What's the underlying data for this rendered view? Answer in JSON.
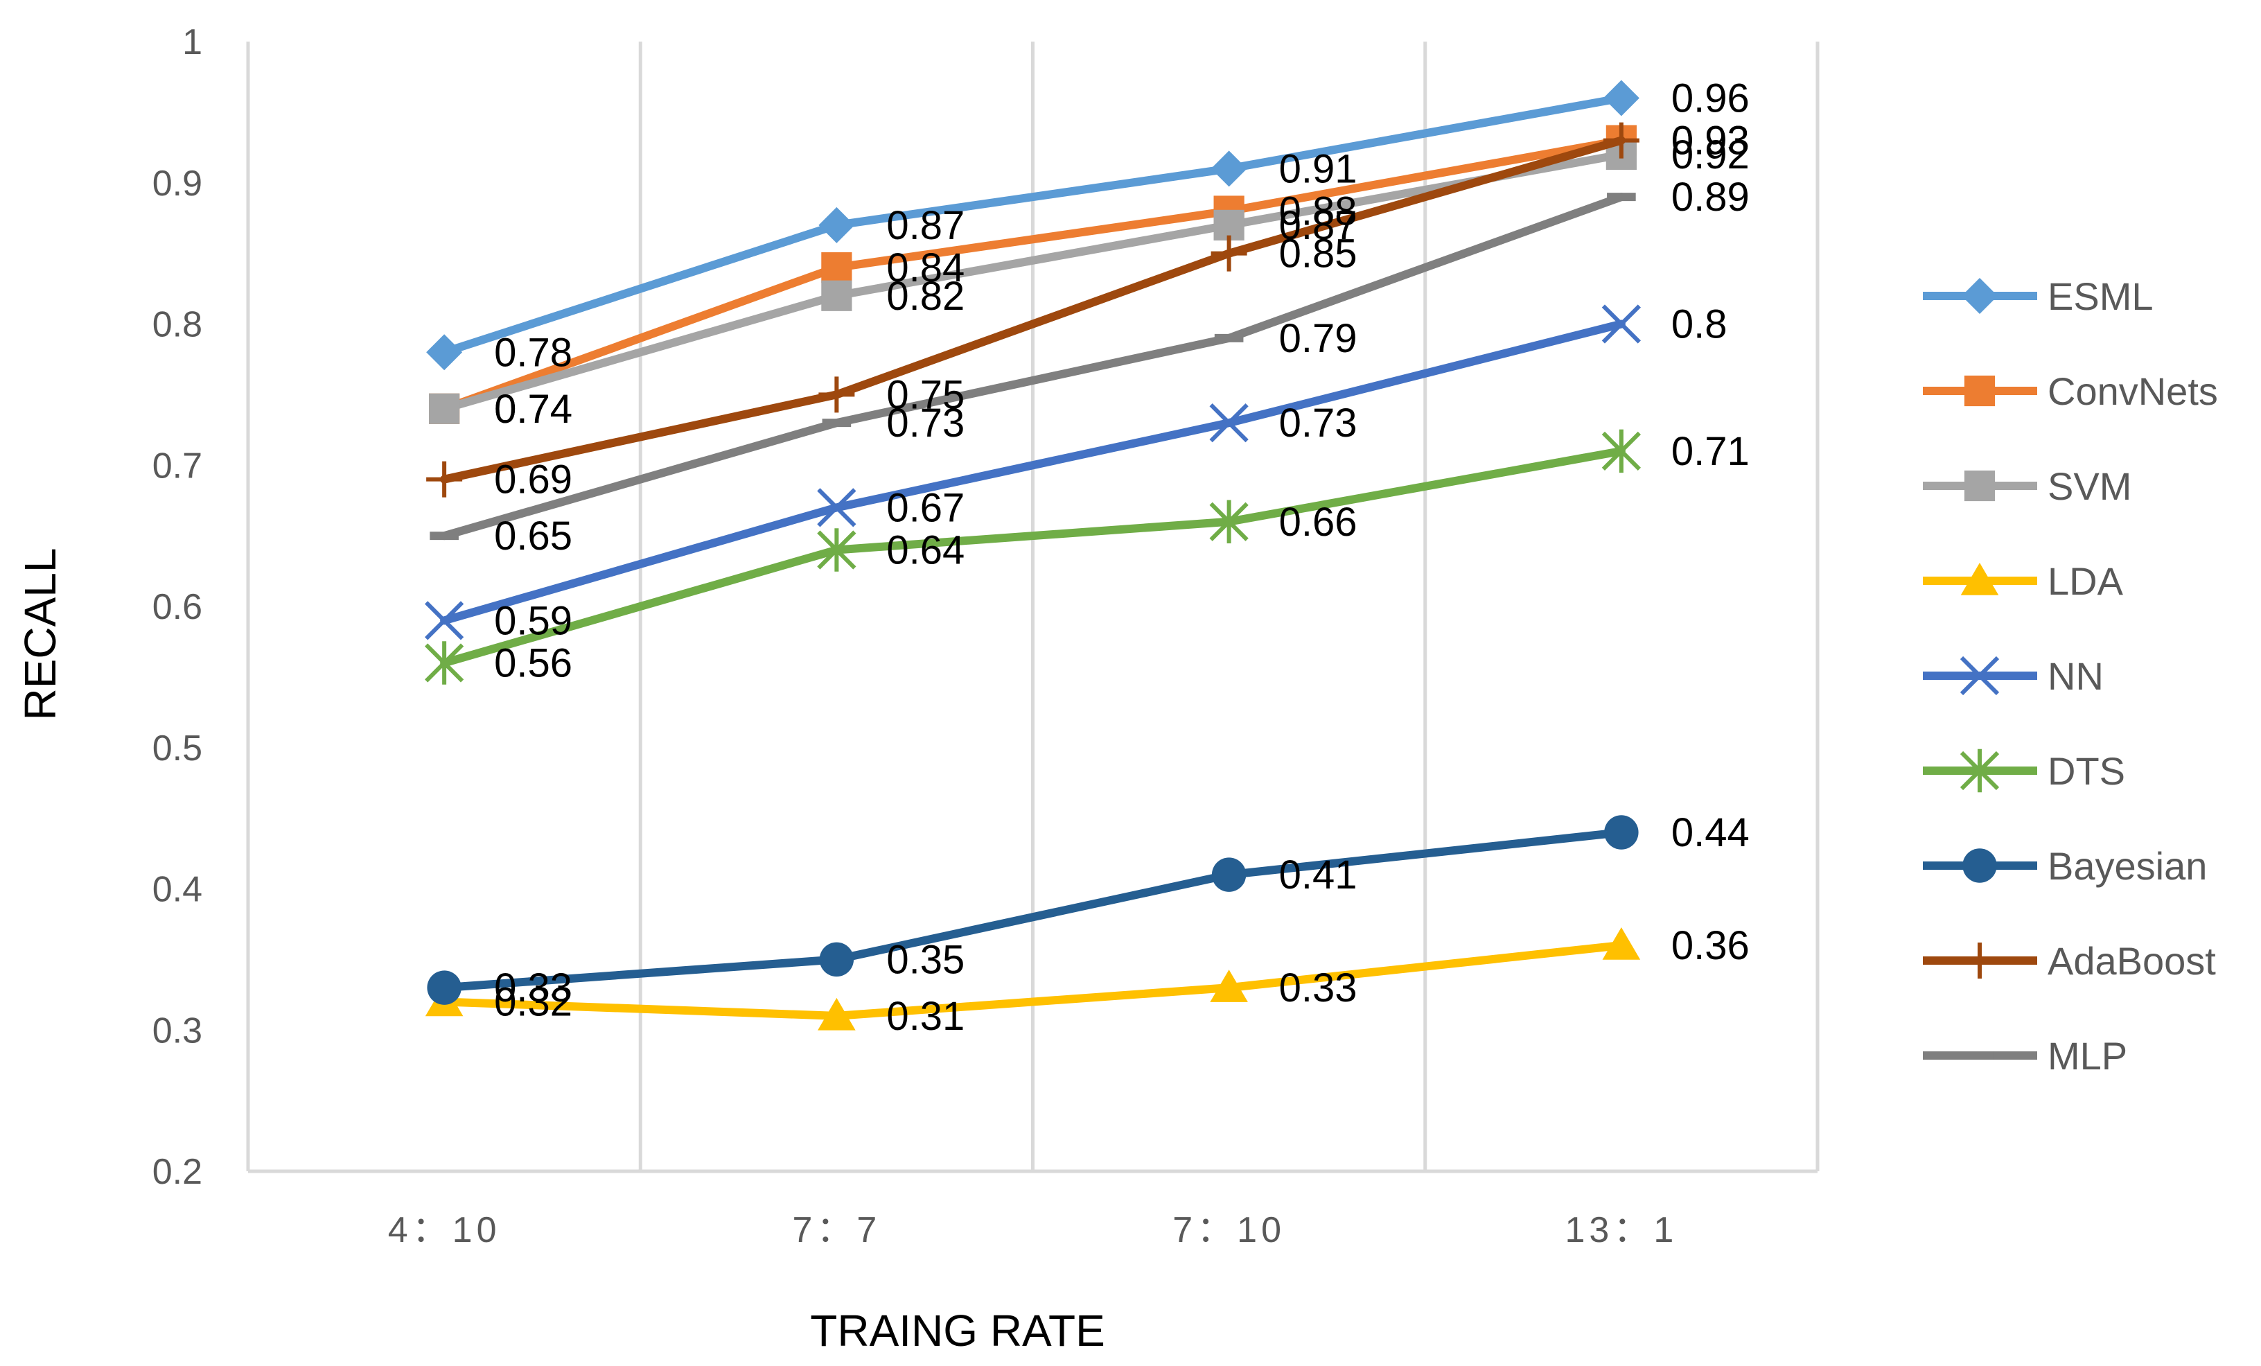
{
  "chart_data": {
    "type": "line",
    "title": "",
    "xlabel": "TRAING RATE",
    "ylabel": "RECALL",
    "ylim": [
      0.2,
      1
    ],
    "yticks": [
      "0.2",
      "0.3",
      "0.4",
      "0.5",
      "0.6",
      "0.7",
      "0.8",
      "0.9",
      "1"
    ],
    "categories": [
      "4：10",
      "7：7",
      "7：10",
      "13：1"
    ],
    "grid": "vertical",
    "legend_position": "right",
    "series": [
      {
        "name": "ESML",
        "color": "#5B9BD5",
        "marker": "diamond",
        "values": [
          0.78,
          0.87,
          0.91,
          0.96
        ],
        "labels": [
          "0.78",
          "0.87",
          "0.91",
          "0.96"
        ]
      },
      {
        "name": "ConvNets",
        "color": "#ED7D31",
        "marker": "square",
        "values": [
          0.74,
          0.84,
          0.88,
          0.93
        ],
        "labels": [
          "0.74",
          "0.84",
          "0.88",
          "0.93"
        ]
      },
      {
        "name": "SVM",
        "color": "#A5A5A5",
        "marker": "square",
        "values": [
          0.74,
          0.82,
          0.87,
          0.92
        ],
        "labels": [
          "0.74",
          "0.82",
          "0.87",
          "0.92"
        ]
      },
      {
        "name": "LDA",
        "color": "#FFC000",
        "marker": "triangle",
        "values": [
          0.32,
          0.31,
          0.33,
          0.36
        ],
        "labels": [
          "0.32",
          "0.31",
          "0.33",
          "0.36"
        ]
      },
      {
        "name": "NN",
        "color": "#4472C4",
        "marker": "x",
        "values": [
          0.59,
          0.67,
          0.73,
          0.8
        ],
        "labels": [
          "0.59",
          "0.67",
          "0.73",
          "0.8"
        ]
      },
      {
        "name": "DTS",
        "color": "#70AD47",
        "marker": "star",
        "values": [
          0.56,
          0.64,
          0.66,
          0.71
        ],
        "labels": [
          "0.56",
          "0.64",
          "0.66",
          "0.71"
        ]
      },
      {
        "name": "Bayesian",
        "color": "#255E91",
        "marker": "circle",
        "values": [
          0.33,
          0.35,
          0.41,
          0.44
        ],
        "labels": [
          "0.33",
          "0.35",
          "0.41",
          "0.44"
        ]
      },
      {
        "name": "AdaBoost",
        "color": "#9E480E",
        "marker": "plus",
        "values": [
          0.69,
          0.75,
          0.85,
          0.93
        ],
        "labels": [
          "0.69",
          "0.75",
          "0.85",
          "0.93"
        ]
      },
      {
        "name": "MLP",
        "color": "#7F7F7F",
        "marker": "dash",
        "values": [
          0.65,
          0.73,
          0.79,
          0.89
        ],
        "labels": [
          "0.65",
          "0.73",
          "0.79",
          "0.89"
        ]
      }
    ]
  }
}
